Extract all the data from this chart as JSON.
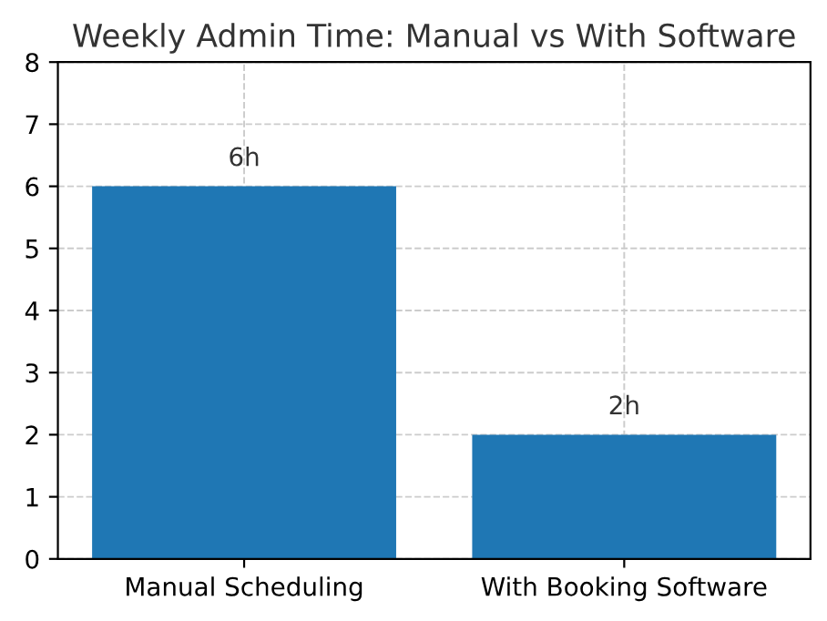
{
  "chart_data": {
    "type": "bar",
    "title": "Weekly Admin Time: Manual vs With Software",
    "categories": [
      "Manual Scheduling",
      "With Booking Software"
    ],
    "values": [
      6,
      2
    ],
    "color": "#1f77b4",
    "value_labels": [
      "6h",
      "2h"
    ],
    "ylim": [
      0,
      8
    ],
    "yticks": [
      0,
      1,
      2,
      3,
      4,
      5,
      6,
      7,
      8
    ],
    "grid": true,
    "line_style": "dashed"
  }
}
